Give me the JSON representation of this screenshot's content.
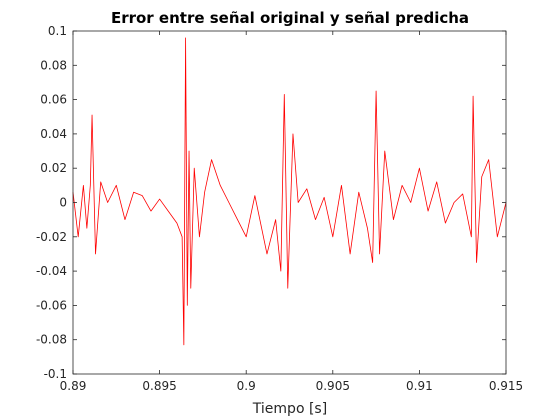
{
  "chart_data": {
    "type": "line",
    "title": "Error entre señal original y señal predicha",
    "xlabel": "Tiempo [s]",
    "ylabel": "",
    "xlim": [
      0.89,
      0.915
    ],
    "ylim": [
      -0.1,
      0.1
    ],
    "x_ticks": [
      0.89,
      0.895,
      0.9,
      0.905,
      0.91,
      0.915
    ],
    "x_tick_labels": [
      "0.89",
      "0.895",
      "0.9",
      "0.905",
      "0.91",
      "0.915"
    ],
    "y_ticks": [
      -0.1,
      -0.08,
      -0.06,
      -0.04,
      -0.02,
      0,
      0.02,
      0.04,
      0.06,
      0.08,
      0.1
    ],
    "y_tick_labels": [
      "-0.1",
      "-0.08",
      "-0.06",
      "-0.04",
      "-0.02",
      "0",
      "0.02",
      "0.04",
      "0.06",
      "0.08",
      "0.1"
    ],
    "grid": false,
    "series": [
      {
        "color": "#ff0000",
        "x": [
          0.89,
          0.8903,
          0.8906,
          0.8908,
          0.891,
          0.8911,
          0.8913,
          0.8916,
          0.892,
          0.8925,
          0.893,
          0.8935,
          0.894,
          0.8945,
          0.895,
          0.8955,
          0.896,
          0.8963,
          0.8964,
          0.8965,
          0.8966,
          0.8967,
          0.8968,
          0.897,
          0.8973,
          0.8976,
          0.898,
          0.8985,
          0.899,
          0.8995,
          0.9,
          0.9005,
          0.9012,
          0.9017,
          0.902,
          0.9022,
          0.9024,
          0.9027,
          0.903,
          0.9035,
          0.904,
          0.9045,
          0.905,
          0.9055,
          0.906,
          0.9065,
          0.907,
          0.9073,
          0.9075,
          0.9077,
          0.908,
          0.9085,
          0.909,
          0.9095,
          0.91,
          0.9105,
          0.911,
          0.9115,
          0.912,
          0.9125,
          0.913,
          0.9131,
          0.9133,
          0.9136,
          0.914,
          0.9145,
          0.915
        ],
        "y": [
          0.006,
          -0.02,
          0.01,
          -0.015,
          0.01,
          0.051,
          -0.03,
          0.012,
          0.0,
          0.01,
          -0.01,
          0.006,
          0.004,
          -0.005,
          0.002,
          -0.005,
          -0.012,
          -0.02,
          -0.083,
          0.096,
          -0.06,
          0.03,
          -0.05,
          0.02,
          -0.02,
          0.006,
          0.025,
          0.01,
          0.0,
          -0.01,
          -0.02,
          0.004,
          -0.03,
          -0.01,
          -0.04,
          0.063,
          -0.05,
          0.04,
          0.0,
          0.008,
          -0.01,
          0.003,
          -0.02,
          0.01,
          -0.03,
          0.006,
          -0.015,
          -0.035,
          0.065,
          -0.03,
          0.03,
          -0.01,
          0.01,
          0.0,
          0.02,
          -0.005,
          0.012,
          -0.012,
          0.0,
          0.005,
          -0.02,
          0.062,
          -0.035,
          0.015,
          0.025,
          -0.02,
          0.0
        ]
      }
    ]
  }
}
